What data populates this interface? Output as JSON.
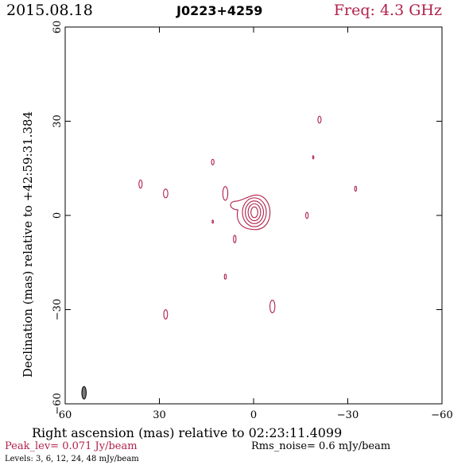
{
  "header": {
    "date": "2015.08.18",
    "source": "J0223+4259",
    "freq": "Freq: 4.3 GHz"
  },
  "footer": {
    "peak": "Peak_lev=  0.071 Jy/beam",
    "rms": "Rms_noise=   0.6 mJy/beam",
    "levels": "Levels:   3,    6,   12,   24,   48 mJy/beam"
  },
  "colors": {
    "contour": "#b0214a",
    "beam": "#777777",
    "axes": "#000000"
  },
  "chart_data": {
    "type": "contour",
    "xlabel": "Right ascension (mas) relative to 02:23:11.4099",
    "ylabel": "Declination (mas) relative to +42:59:31.384",
    "xlim": [
      60,
      -60
    ],
    "ylim": [
      -60,
      60
    ],
    "xticks": [
      60,
      30,
      0,
      -30,
      -60
    ],
    "yticks": [
      60,
      30,
      0,
      -30,
      -60
    ],
    "xtick_labels": [
      "60",
      "30",
      "0",
      "−30",
      "−60"
    ],
    "ytick_labels": [
      "60",
      "30",
      "0",
      "−30",
      "−60"
    ],
    "contour_levels_mJy": [
      3,
      6,
      12,
      24,
      48
    ],
    "peak_Jy_per_beam": 0.071,
    "rms_mJy_per_beam": 0.6,
    "core": {
      "x": 0,
      "y": 1,
      "contours": [
        {
          "level": 3,
          "rx": 5.5,
          "ry": 5.5,
          "bump": true
        },
        {
          "level": 6,
          "rx": 3.8,
          "ry": 4.6
        },
        {
          "level": 12,
          "rx": 2.9,
          "ry": 3.6
        },
        {
          "level": 24,
          "rx": 2.0,
          "ry": 2.7
        },
        {
          "level": 48,
          "rx": 1.1,
          "ry": 1.7
        }
      ]
    },
    "components": [
      {
        "x": -21.0,
        "y": 30.5,
        "rx": 0.5,
        "ry": 1.1
      },
      {
        "x": 13.0,
        "y": 17.0,
        "rx": 0.4,
        "ry": 0.9
      },
      {
        "x": -19.0,
        "y": 18.5,
        "rx": 0.2,
        "ry": 0.5
      },
      {
        "x": 36.0,
        "y": 10.0,
        "rx": 0.5,
        "ry": 1.3
      },
      {
        "x": 28.0,
        "y": 7.0,
        "rx": 0.7,
        "ry": 1.4
      },
      {
        "x": -32.5,
        "y": 8.5,
        "rx": 0.3,
        "ry": 0.8
      },
      {
        "x": 9.0,
        "y": 7.0,
        "rx": 0.8,
        "ry": 2.2
      },
      {
        "x": -17.0,
        "y": 0.0,
        "rx": 0.4,
        "ry": 1.0
      },
      {
        "x": 13.0,
        "y": -2.0,
        "rx": 0.2,
        "ry": 0.5
      },
      {
        "x": 6.0,
        "y": -7.5,
        "rx": 0.4,
        "ry": 1.2
      },
      {
        "x": 9.0,
        "y": -19.5,
        "rx": 0.3,
        "ry": 0.8
      },
      {
        "x": -6.0,
        "y": -29.0,
        "rx": 0.8,
        "ry": 2.0
      },
      {
        "x": 28.0,
        "y": -31.5,
        "rx": 0.6,
        "ry": 1.5
      }
    ],
    "beam": {
      "x": 54,
      "y": -56.5,
      "rx": 0.7,
      "ry": 2.0
    }
  }
}
